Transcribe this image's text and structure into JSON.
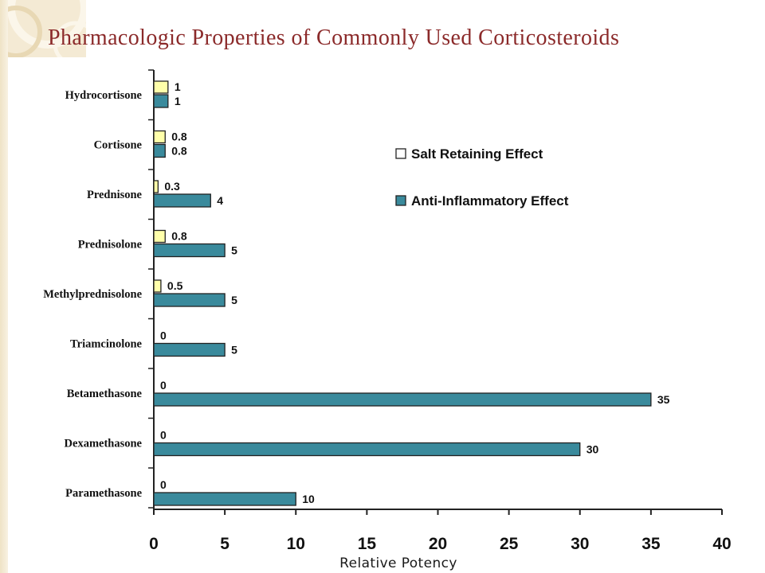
{
  "slide": {
    "title": "Pharmacologic Properties of Commonly Used Corticosteroids"
  },
  "chart_data": {
    "type": "bar",
    "orientation": "horizontal",
    "categories": [
      "Hydrocortisone",
      "Cortisone",
      "Prednisone",
      "Prednisolone",
      "Methylprednisolone",
      "Triamcinolone",
      "Betamethasone",
      "Dexamethasone",
      "Paramethasone"
    ],
    "series": [
      {
        "name": "Salt Retaining Effect",
        "values": [
          1,
          0.8,
          0.3,
          0.8,
          0.5,
          0,
          0,
          0,
          0
        ],
        "labels": [
          "1",
          "0.8",
          "0.3",
          "0.8",
          "0.5",
          "0",
          "0",
          "0",
          "0"
        ],
        "color": "#ffffaa"
      },
      {
        "name": "Anti-Inflammatory Effect",
        "values": [
          1,
          0.8,
          4,
          5,
          5,
          5,
          35,
          30,
          10
        ],
        "labels": [
          "1",
          "0.8",
          "4",
          "5",
          "5",
          "5",
          "35",
          "30",
          "10"
        ],
        "color": "#3a8a9c"
      }
    ],
    "xlim": [
      0,
      40
    ],
    "xticks": [
      "0",
      "5",
      "10",
      "15",
      "20",
      "25",
      "30",
      "35",
      "40"
    ],
    "xlabel": "Relative Potency",
    "legend_position": "top-right",
    "grid": false
  }
}
